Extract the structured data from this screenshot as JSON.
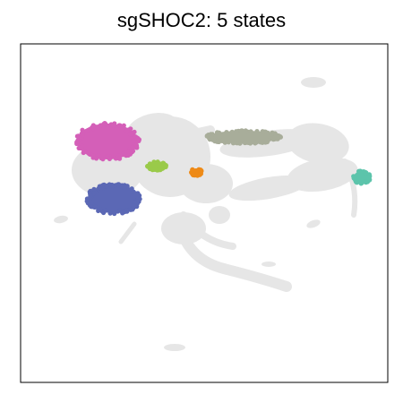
{
  "chart_data": {
    "type": "scatter",
    "title": "sgSHOC2: 5 states",
    "xlabel": "",
    "ylabel": "",
    "axes_ticks": false,
    "grid": false,
    "legend": "none",
    "background_color": "#e6e6e6",
    "series": [
      {
        "color": "#d45fb8",
        "cluster": {
          "cx": 120,
          "cy": 158,
          "rx": 34,
          "ry": 20
        }
      },
      {
        "color": "#5b68b5",
        "cluster": {
          "cx": 127,
          "cy": 222,
          "rx": 29,
          "ry": 16
        }
      },
      {
        "color": "#9aca4a",
        "cluster": {
          "cx": 175,
          "cy": 185,
          "rx": 10,
          "ry": 5
        }
      },
      {
        "color": "#ee8a17",
        "cluster": {
          "cx": 219,
          "cy": 192,
          "rx": 6,
          "ry": 4
        }
      },
      {
        "color": "#a8ad9a",
        "cluster": {
          "cx": 272,
          "cy": 153,
          "rx": 40,
          "ry": 7
        }
      },
      {
        "color": "#5cc4ab",
        "cluster": {
          "cx": 404,
          "cy": 198,
          "rx": 9,
          "ry": 7
        }
      }
    ]
  }
}
